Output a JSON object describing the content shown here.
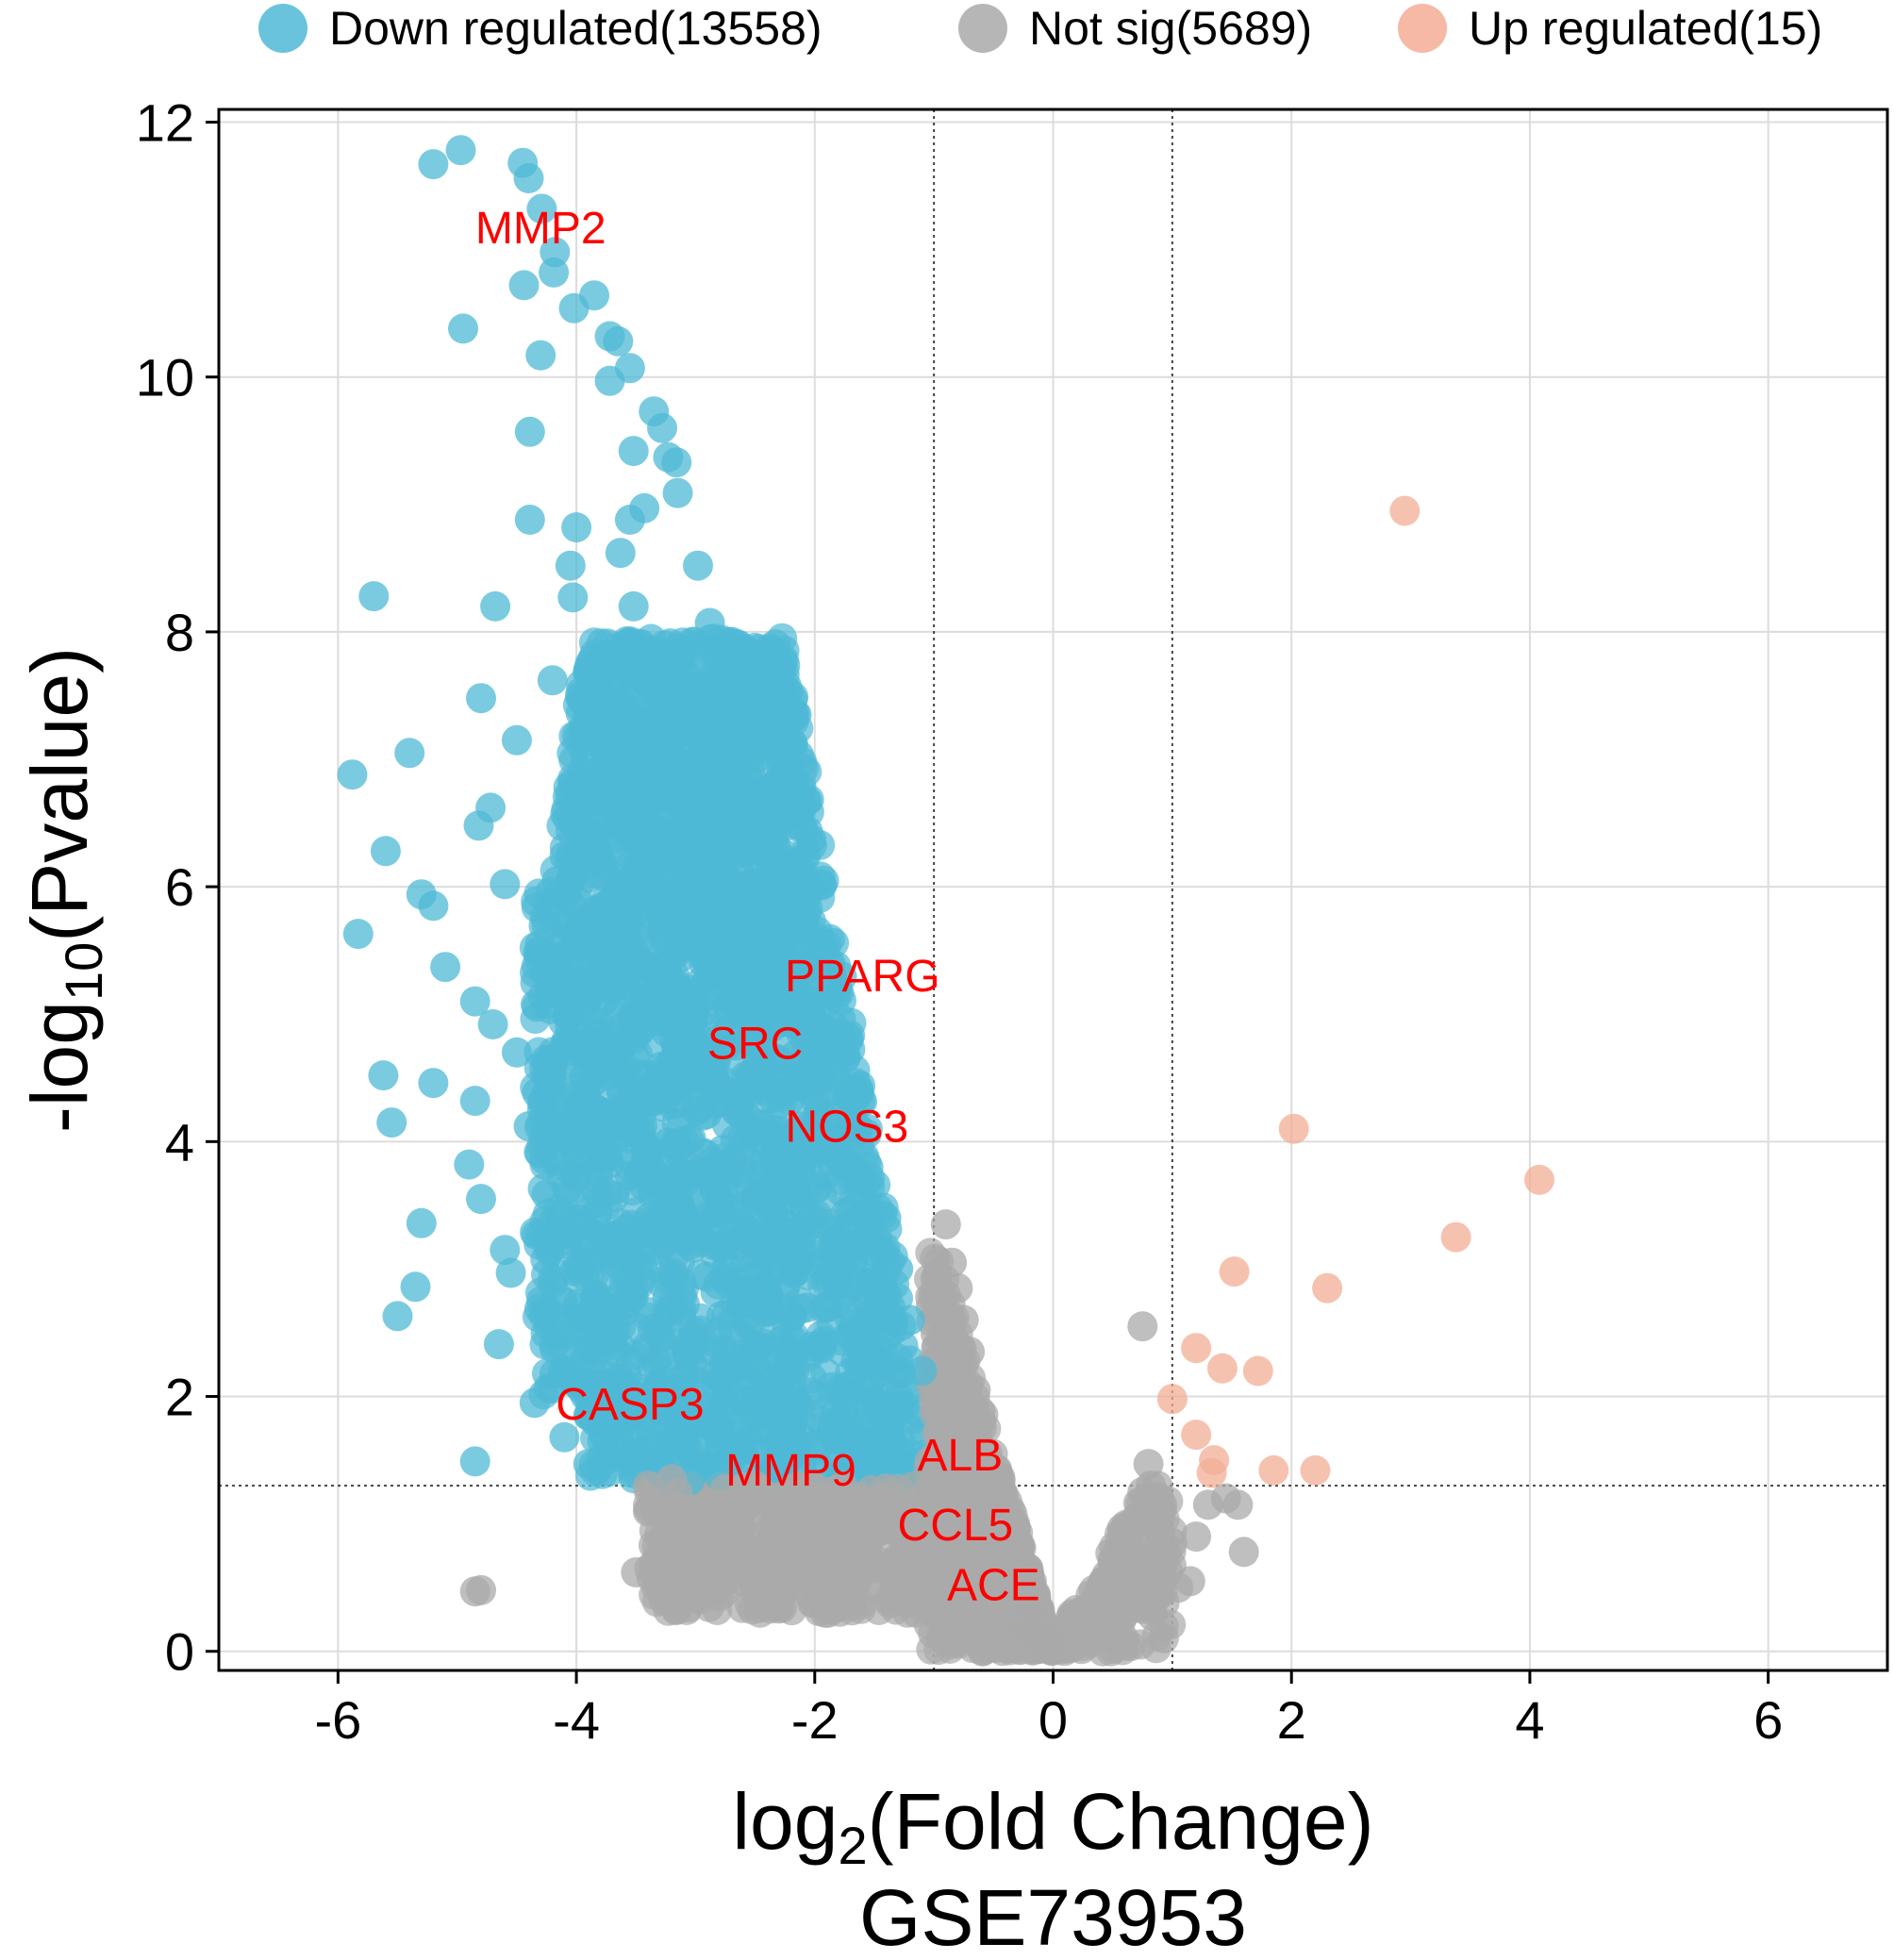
{
  "chart_data": {
    "type": "scatter",
    "title": "GSE73953",
    "xlabel": {
      "base": "log",
      "sub": "2",
      "rest": "(Fold Change)"
    },
    "ylabel": {
      "base": "-log",
      "sub": "10",
      "rest": "(Pvalue)"
    },
    "xlim": [
      -7,
      7
    ],
    "ylim": [
      -0.15,
      12.1
    ],
    "xticks": [
      -6,
      -4,
      -2,
      0,
      2,
      4,
      6
    ],
    "xtick_labels": [
      "-6",
      "-4",
      "-2",
      "0",
      "2",
      "4",
      "6"
    ],
    "yticks": [
      0,
      2,
      4,
      6,
      8,
      10,
      12
    ],
    "ytick_labels": [
      "0",
      "2",
      "4",
      "6",
      "8",
      "10",
      "12"
    ],
    "grid": true,
    "thresholds": {
      "fc_lines": [
        -1,
        1
      ],
      "p_line": 1.3
    },
    "legend": {
      "placement": "top",
      "entries": [
        {
          "label": "Down regulated(13558)",
          "color": "#4FB9D6"
        },
        {
          "label": "Not sig(5689)",
          "color": "#A9A9A9"
        },
        {
          "label": "Up regulated(15)",
          "color": "#F3AD96"
        }
      ]
    },
    "colors": {
      "down": "#4FB9D6",
      "notsig": "#A9A9A9",
      "up": "#F3AD96",
      "label": "#FF0000"
    },
    "series": [
      {
        "name": "Down regulated",
        "color": "#4FB9D6",
        "x": [
          -5.2,
          -4.97,
          -4.45,
          -4.4,
          -4.29,
          -4.19,
          -4.44,
          -4.18,
          -4.95,
          -4.02,
          -3.85,
          -3.72,
          -4.3,
          -3.65,
          -3.72,
          -3.55,
          -3.35,
          -3.28,
          -3.52,
          -4.39,
          -3.23,
          -3.16,
          -3.15,
          -3.43,
          -3.55,
          -4.05,
          -2.98,
          -3.52,
          -2.88,
          -4.03,
          -3.45,
          -2.91,
          -2.75,
          -3.09,
          -2.72,
          -2.62,
          -4.39,
          -4.0,
          -3.63,
          -2.5,
          -2.68,
          -2.35,
          -4.68,
          -5.7,
          -4.8,
          -4.5,
          -2.2,
          -2.1,
          -2.05,
          -1.95,
          -1.82,
          -1.7,
          -1.55,
          -1.4,
          -1.3,
          -1.2,
          -1.1,
          -5.4,
          -5.88,
          -4.82,
          -4.6,
          -4.72,
          -5.2,
          -5.3,
          -5.6,
          -5.83,
          -5.1,
          -4.85,
          -4.7,
          -4.5,
          -4.85,
          -4.4,
          -4.9,
          -5.62,
          -5.55,
          -5.2,
          -4.8,
          -5.3,
          -5.35,
          -5.5,
          -4.55,
          -4.65,
          -4.1,
          -4.0,
          -3.9,
          -3.2,
          -4.35,
          -4.1,
          -3.9,
          -4.85,
          -3.5,
          -4.6,
          -2.8,
          -3.3,
          -3.05,
          -4.2,
          -3.8
        ],
        "y": [
          11.67,
          11.78,
          11.68,
          11.56,
          11.32,
          10.82,
          10.72,
          10.98,
          10.38,
          10.54,
          10.64,
          10.32,
          10.17,
          10.28,
          9.97,
          10.07,
          9.73,
          9.6,
          9.42,
          9.57,
          9.37,
          9.33,
          9.09,
          8.97,
          8.88,
          8.52,
          8.52,
          8.2,
          8.07,
          8.27,
          7.9,
          7.78,
          7.7,
          7.55,
          7.42,
          7.3,
          8.88,
          8.82,
          8.62,
          7.0,
          6.6,
          6.4,
          8.2,
          8.28,
          7.48,
          7.15,
          6.0,
          5.7,
          5.3,
          4.9,
          4.5,
          4.1,
          3.8,
          3.4,
          3.0,
          2.6,
          2.2,
          7.05,
          6.88,
          6.48,
          6.02,
          6.62,
          5.85,
          5.94,
          6.28,
          5.63,
          5.37,
          5.1,
          4.92,
          4.7,
          4.32,
          4.12,
          3.82,
          4.52,
          4.15,
          4.46,
          3.55,
          3.36,
          2.86,
          2.63,
          2.97,
          2.41,
          2.52,
          2.2,
          1.85,
          1.35,
          1.95,
          1.68,
          1.47,
          1.49,
          1.52,
          3.15,
          1.38,
          1.41,
          1.34,
          7.62,
          2.1
        ]
      },
      {
        "name": "Not sig",
        "color": "#A9A9A9",
        "x": [
          -4.8,
          -4.85,
          -3.5,
          -3.3,
          -3.05,
          -2.9,
          -2.6,
          -2.35,
          -2.1,
          -1.9,
          -3.4,
          -3.15,
          -2.75,
          -2.5,
          -2.25,
          -2.0,
          -1.72,
          -1.5,
          -1.3,
          -1.15,
          -1.0,
          -0.95,
          -0.9,
          -0.85,
          -0.8,
          -0.75,
          -0.7,
          -0.65,
          -0.6,
          -0.55,
          -0.5,
          -0.45,
          -0.4,
          -0.35,
          -0.3,
          -0.25,
          -0.2,
          -0.15,
          -0.1,
          -0.05,
          0.0,
          0.05,
          0.1,
          0.15,
          0.2,
          0.25,
          0.3,
          0.35,
          0.4,
          0.45,
          0.5,
          0.55,
          0.6,
          0.65,
          0.7,
          0.75,
          0.8,
          0.85,
          0.9,
          0.95,
          1.0,
          1.05,
          1.15,
          1.2,
          1.3,
          1.45,
          1.55,
          1.6,
          0.75,
          0.82,
          0.62,
          0.5,
          0.42,
          0.88,
          -0.75,
          -0.85,
          -0.78,
          -0.68,
          -1.0,
          -2.15,
          -3.0,
          -3.2,
          -2.5
        ],
        "y": [
          0.48,
          0.47,
          0.62,
          0.6,
          0.8,
          0.98,
          0.55,
          0.6,
          0.7,
          0.9,
          1.3,
          1.24,
          1.27,
          1.3,
          1.2,
          1.1,
          1.05,
          1.0,
          0.95,
          0.8,
          0.6,
          0.5,
          3.35,
          3.05,
          2.85,
          2.6,
          2.35,
          2.05,
          1.75,
          1.5,
          1.25,
          1.0,
          0.8,
          0.62,
          0.45,
          0.32,
          0.2,
          0.12,
          0.07,
          0.03,
          0.02,
          0.03,
          0.06,
          0.1,
          0.15,
          0.2,
          0.3,
          0.4,
          0.5,
          0.6,
          0.72,
          0.8,
          0.88,
          0.95,
          1.05,
          1.25,
          1.47,
          1.0,
          0.92,
          0.78,
          0.85,
          0.5,
          0.55,
          0.9,
          1.15,
          1.2,
          1.15,
          0.78,
          2.55,
          1.3,
          0.95,
          0.7,
          0.55,
          1.05,
          0.95,
          0.65,
          0.4,
          0.3,
          0.3,
          0.85,
          0.95,
          1.35,
          0.5
        ]
      },
      {
        "name": "Up regulated",
        "color": "#F3AD96",
        "x": [
          2.95,
          2.02,
          4.08,
          3.38,
          1.52,
          2.3,
          1.2,
          1.42,
          1.72,
          1.0,
          1.2,
          1.35,
          1.33,
          1.85,
          2.2
        ],
        "y": [
          8.95,
          4.1,
          3.7,
          3.25,
          2.98,
          2.85,
          2.38,
          2.22,
          2.2,
          1.98,
          1.7,
          1.5,
          1.4,
          1.42,
          1.42
        ]
      }
    ],
    "gene_labels": [
      {
        "text": "MMP2",
        "x": -4.3,
        "y": 11.05
      },
      {
        "text": "PPARG",
        "x": -1.6,
        "y": 5.18
      },
      {
        "text": "SRC",
        "x": -2.5,
        "y": 4.65
      },
      {
        "text": "NOS3",
        "x": -1.73,
        "y": 4.0
      },
      {
        "text": "CASP3",
        "x": -3.55,
        "y": 1.82
      },
      {
        "text": "MMP9",
        "x": -2.2,
        "y": 1.3
      },
      {
        "text": "ALB",
        "x": -0.78,
        "y": 1.42
      },
      {
        "text": "CCL5",
        "x": -0.82,
        "y": 0.87
      },
      {
        "text": "ACE",
        "x": -0.5,
        "y": 0.4
      }
    ]
  }
}
